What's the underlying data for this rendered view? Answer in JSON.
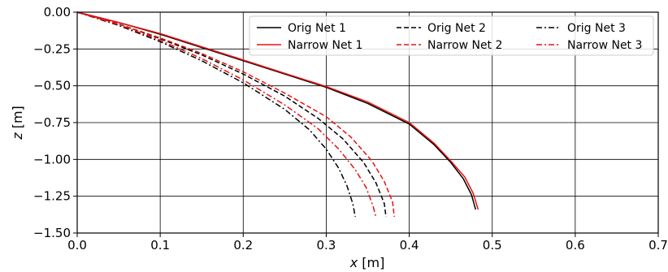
{
  "chart_data": {
    "type": "line",
    "title": "",
    "xlabel_var": "x",
    "xlabel_unit": " [m]",
    "ylabel_var": "z",
    "ylabel_unit": " [m]",
    "xlim": [
      0.0,
      0.7
    ],
    "ylim": [
      -1.5,
      0.0
    ],
    "xticks": [
      0.0,
      0.1,
      0.2,
      0.3,
      0.4,
      0.5,
      0.6,
      0.7
    ],
    "yticks": [
      0.0,
      -0.25,
      -0.5,
      -0.75,
      -1.0,
      -1.25,
      -1.5
    ],
    "xtick_labels": [
      "0.0",
      "0.1",
      "0.2",
      "0.3",
      "0.4",
      "0.5",
      "0.6",
      "0.7"
    ],
    "ytick_labels": [
      "0.00",
      "−0.25",
      "−0.50",
      "−0.75",
      "−1.00",
      "−1.25",
      "−1.50"
    ],
    "grid": true,
    "legend": {
      "placement": "top-right",
      "columns": 3
    },
    "series": [
      {
        "name": "Orig Net 1",
        "color": "#000000",
        "style": "solid",
        "x": [
          0.0,
          0.05,
          0.1,
          0.15,
          0.2,
          0.25,
          0.3,
          0.35,
          0.4,
          0.43,
          0.45,
          0.465,
          0.475,
          0.48
        ],
        "z": [
          0.0,
          -0.07,
          -0.15,
          -0.24,
          -0.33,
          -0.42,
          -0.51,
          -0.62,
          -0.76,
          -0.9,
          -1.02,
          -1.13,
          -1.24,
          -1.34
        ]
      },
      {
        "name": "Narrow Net 1",
        "color": "#e8100f",
        "style": "solid",
        "x": [
          0.0,
          0.05,
          0.1,
          0.15,
          0.2,
          0.25,
          0.3,
          0.35,
          0.4,
          0.43,
          0.45,
          0.467,
          0.477,
          0.483
        ],
        "z": [
          0.0,
          -0.07,
          -0.145,
          -0.235,
          -0.325,
          -0.415,
          -0.505,
          -0.61,
          -0.75,
          -0.89,
          -1.01,
          -1.12,
          -1.23,
          -1.34
        ]
      },
      {
        "name": "Orig Net 2",
        "color": "#000000",
        "style": "dashed",
        "x": [
          0.0,
          0.05,
          0.1,
          0.15,
          0.2,
          0.25,
          0.29,
          0.32,
          0.345,
          0.36,
          0.37,
          0.372
        ],
        "z": [
          0.0,
          -0.08,
          -0.18,
          -0.29,
          -0.42,
          -0.57,
          -0.72,
          -0.86,
          -1.02,
          -1.16,
          -1.3,
          -1.39
        ]
      },
      {
        "name": "Narrow Net 2",
        "color": "#e8100f",
        "style": "dashed",
        "x": [
          0.0,
          0.05,
          0.1,
          0.15,
          0.2,
          0.25,
          0.3,
          0.33,
          0.355,
          0.37,
          0.38,
          0.382
        ],
        "z": [
          0.0,
          -0.08,
          -0.175,
          -0.28,
          -0.405,
          -0.55,
          -0.71,
          -0.85,
          -1.01,
          -1.15,
          -1.29,
          -1.39
        ]
      },
      {
        "name": "Orig Net 3",
        "color": "#000000",
        "style": "dashdot",
        "x": [
          0.0,
          0.05,
          0.1,
          0.15,
          0.2,
          0.25,
          0.28,
          0.3,
          0.315,
          0.325,
          0.332,
          0.335
        ],
        "z": [
          0.0,
          -0.09,
          -0.2,
          -0.33,
          -0.48,
          -0.66,
          -0.8,
          -0.93,
          -1.06,
          -1.18,
          -1.3,
          -1.39
        ]
      },
      {
        "name": "Narrow Net 3",
        "color": "#e8100f",
        "style": "dashdot",
        "x": [
          0.0,
          0.05,
          0.1,
          0.15,
          0.2,
          0.25,
          0.29,
          0.315,
          0.335,
          0.348,
          0.356,
          0.36
        ],
        "z": [
          0.0,
          -0.085,
          -0.19,
          -0.315,
          -0.46,
          -0.63,
          -0.79,
          -0.93,
          -1.07,
          -1.19,
          -1.31,
          -1.39
        ]
      }
    ]
  }
}
